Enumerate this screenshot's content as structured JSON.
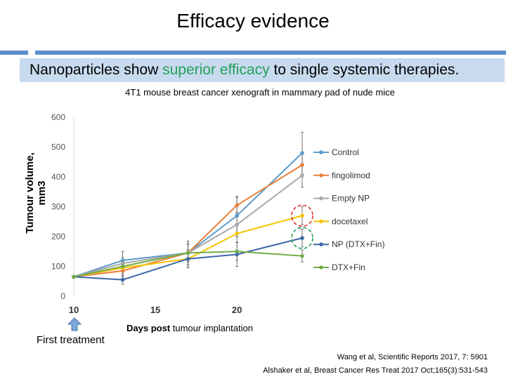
{
  "slide": {
    "title": "Efficacy evidence",
    "banner_before": "Nanoparticles show ",
    "banner_highlight": "superior efficacy",
    "banner_after": " to single systemic therapies.",
    "subtitle": "4T1 mouse breast cancer xenograft in mammary pad of nude mice",
    "first_treatment": "First treatment",
    "xlabel_bold": "Days post",
    "xlabel_rest": " tumour implantation",
    "refs": [
      "Wang et al, Scientific Reports 2017, 7: 5901",
      "Alshaker et al, Breast Cancer Res Treat 2017 Oct;165(3):531-543"
    ],
    "accent_color": "#5b8fcf",
    "banner_color": "#c8daee",
    "highlight_color": "#22a05a"
  },
  "chart_data": {
    "type": "line",
    "ylabel": "Tumour volume, mm3",
    "xlabel": "Days post tumour implantation",
    "xlim": [
      10,
      24
    ],
    "ylim": [
      0,
      600
    ],
    "xticks": [
      10,
      15,
      20
    ],
    "yticks": [
      0,
      100,
      200,
      300,
      400,
      500,
      600
    ],
    "x": [
      10,
      13,
      17,
      20,
      24
    ],
    "legend_position": "right",
    "series": [
      {
        "name": "Control",
        "color": "#5b9bc8",
        "values": [
          65,
          120,
          145,
          270,
          480
        ]
      },
      {
        "name": "fingolimod",
        "color": "#e8803a",
        "values": [
          65,
          85,
          145,
          305,
          440
        ]
      },
      {
        "name": "Empty NP",
        "color": "#a8a8a8",
        "values": [
          65,
          110,
          145,
          240,
          405
        ]
      },
      {
        "name": "docetaxel",
        "color": "#f5c400",
        "values": [
          65,
          95,
          125,
          210,
          270
        ]
      },
      {
        "name": "NP (DTX+Fin)",
        "color": "#3e67a8",
        "values": [
          65,
          55,
          125,
          140,
          195
        ]
      },
      {
        "name": "DTX+Fin",
        "color": "#72ad4a",
        "values": [
          65,
          100,
          145,
          150,
          135
        ]
      }
    ],
    "errors": [
      [
        0,
        30,
        40,
        60,
        70
      ],
      [
        0,
        20,
        30,
        30,
        40
      ],
      [
        0,
        20,
        30,
        40,
        40
      ],
      [
        0,
        20,
        30,
        30,
        30
      ],
      [
        0,
        15,
        30,
        40,
        30
      ],
      [
        0,
        15,
        30,
        30,
        20
      ]
    ],
    "circles": [
      {
        "series": "docetaxel",
        "color": "#e03030"
      },
      {
        "series": "NP (DTX+Fin)",
        "color": "#22a05a"
      }
    ]
  }
}
